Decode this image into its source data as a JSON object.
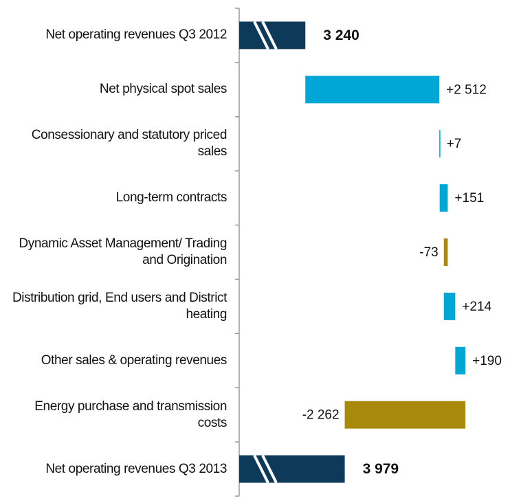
{
  "chart_data": {
    "type": "waterfall",
    "categories": [
      "Net operating revenues Q3 2012",
      "Net physical spot sales",
      "Consessionary and statutory priced sales",
      "Long-term contracts",
      "Dynamic Asset Management/ Trading and Origination",
      "Distribution grid, End users and District heating",
      "Other sales & operating revenues",
      "Energy purchase and transmission costs",
      "Net operating revenues Q3 2013"
    ],
    "values": [
      3240,
      2512,
      7,
      151,
      -73,
      214,
      190,
      -2262,
      3979
    ],
    "value_labels": [
      "3 240",
      "+2 512",
      "+7",
      "+151",
      "-73",
      "+214",
      "+190",
      "-2 262",
      "3 979"
    ],
    "totals": [
      true,
      false,
      false,
      false,
      false,
      false,
      false,
      false,
      true
    ],
    "colors": {
      "total": "#0e3a5a",
      "increase": "#00a6d6",
      "decrease": "#a8890c"
    },
    "xlim": [
      2000,
      7000
    ],
    "axis_break": true
  }
}
